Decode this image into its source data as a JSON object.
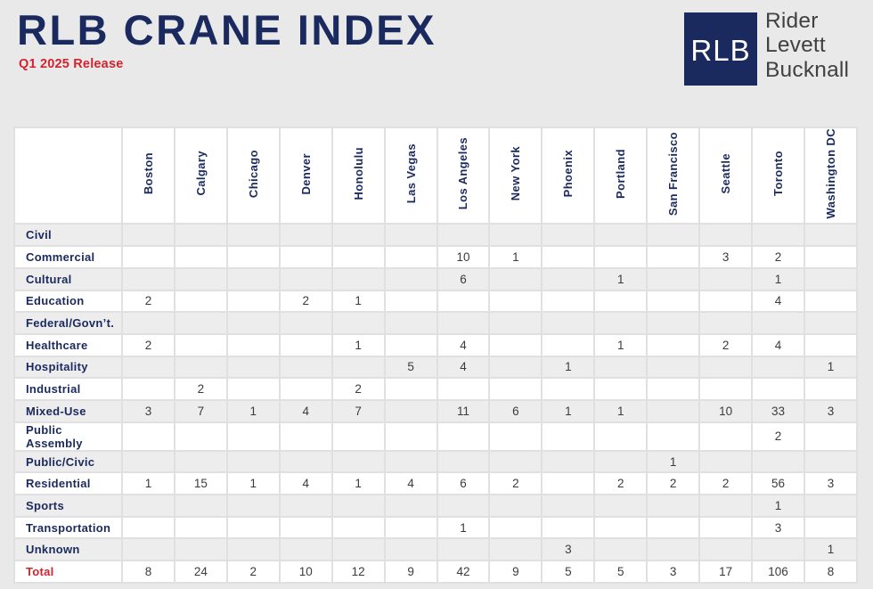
{
  "header": {
    "title": "RLB CRANE INDEX",
    "subtitle": "Q1 2025 Release",
    "logo": {
      "acronym": "RLB",
      "name_lines": [
        "Rider",
        "Levett",
        "Bucknall"
      ]
    }
  },
  "colors": {
    "navy": "#1b2a5e",
    "red": "#d2232e",
    "page_background": "#e9e9e9",
    "row_stripe_gray": "#ededed",
    "row_stripe_white": "#ffffff",
    "grid_line": "#e0e0e0",
    "number_text": "#3b3b3b",
    "logo_text_gray": "#414042"
  },
  "chart_data": {
    "type": "table",
    "title": "RLB CRANE INDEX",
    "subtitle": "Q1 2025 Release",
    "columns": [
      "Boston",
      "Calgary",
      "Chicago",
      "Denver",
      "Honolulu",
      "Las Vegas",
      "Los Angeles",
      "New York",
      "Phoenix",
      "Portland",
      "San Francisco",
      "Seattle",
      "Toronto",
      "Washington DC"
    ],
    "rows": [
      {
        "label": "Civil",
        "values": [
          "",
          "",
          "",
          "",
          "",
          "",
          "",
          "",
          "",
          "",
          "",
          "",
          "",
          ""
        ]
      },
      {
        "label": "Commercial",
        "values": [
          "",
          "",
          "",
          "",
          "",
          "",
          "10",
          "1",
          "",
          "",
          "",
          "3",
          "2",
          ""
        ]
      },
      {
        "label": "Cultural",
        "values": [
          "",
          "",
          "",
          "",
          "",
          "",
          "6",
          "",
          "",
          "1",
          "",
          "",
          "1",
          ""
        ]
      },
      {
        "label": "Education",
        "values": [
          "2",
          "",
          "",
          "2",
          "1",
          "",
          "",
          "",
          "",
          "",
          "",
          "",
          "4",
          ""
        ]
      },
      {
        "label": "Federal/Govn’t.",
        "values": [
          "",
          "",
          "",
          "",
          "",
          "",
          "",
          "",
          "",
          "",
          "",
          "",
          "",
          ""
        ]
      },
      {
        "label": "Healthcare",
        "values": [
          "2",
          "",
          "",
          "",
          "1",
          "",
          "4",
          "",
          "",
          "1",
          "",
          "2",
          "4",
          ""
        ]
      },
      {
        "label": "Hospitality",
        "values": [
          "",
          "",
          "",
          "",
          "",
          "5",
          "4",
          "",
          "1",
          "",
          "",
          "",
          "",
          "1"
        ]
      },
      {
        "label": "Industrial",
        "values": [
          "",
          "2",
          "",
          "",
          "2",
          "",
          "",
          "",
          "",
          "",
          "",
          "",
          "",
          ""
        ]
      },
      {
        "label": "Mixed-Use",
        "values": [
          "3",
          "7",
          "1",
          "4",
          "7",
          "",
          "11",
          "6",
          "1",
          "1",
          "",
          "10",
          "33",
          "3"
        ]
      },
      {
        "label": "Public Assembly",
        "values": [
          "",
          "",
          "",
          "",
          "",
          "",
          "",
          "",
          "",
          "",
          "",
          "",
          "2",
          ""
        ]
      },
      {
        "label": "Public/Civic",
        "values": [
          "",
          "",
          "",
          "",
          "",
          "",
          "",
          "",
          "",
          "",
          "1",
          "",
          "",
          ""
        ]
      },
      {
        "label": "Residential",
        "values": [
          "1",
          "15",
          "1",
          "4",
          "1",
          "4",
          "6",
          "2",
          "",
          "2",
          "2",
          "2",
          "56",
          "3"
        ]
      },
      {
        "label": "Sports",
        "values": [
          "",
          "",
          "",
          "",
          "",
          "",
          "",
          "",
          "",
          "",
          "",
          "",
          "1",
          ""
        ]
      },
      {
        "label": "Transportation",
        "values": [
          "",
          "",
          "",
          "",
          "",
          "",
          "1",
          "",
          "",
          "",
          "",
          "",
          "3",
          ""
        ]
      },
      {
        "label": "Unknown",
        "values": [
          "",
          "",
          "",
          "",
          "",
          "",
          "",
          "",
          "3",
          "",
          "",
          "",
          "",
          "1"
        ]
      },
      {
        "label": "Total",
        "values": [
          "8",
          "24",
          "2",
          "10",
          "12",
          "9",
          "42",
          "9",
          "5",
          "5",
          "3",
          "17",
          "106",
          "8"
        ],
        "is_total": true
      }
    ],
    "layout_hints": {
      "column_headers_rotated": true,
      "row_striping": "alternating gray/white starting gray",
      "total_row_label_color": "red"
    }
  }
}
